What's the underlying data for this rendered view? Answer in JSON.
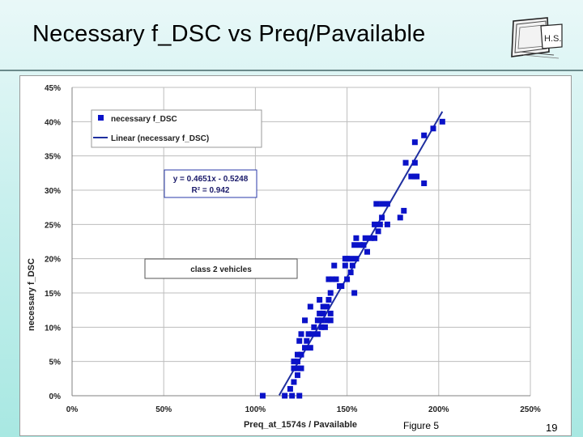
{
  "slide": {
    "title": "Necessary f_DSC vs Preq/Pavailable",
    "figure_label": "Figure 5",
    "page_number": "19",
    "logo_text": "H.S."
  },
  "colors": {
    "marker": "#0a12c8",
    "trendline": "#1f2f9f",
    "grid": "#bdbdbd",
    "axis": "#808080"
  },
  "chart_data": {
    "type": "scatter",
    "xlabel": "Preq_at_1574s / Pavailable",
    "ylabel": "necessary f_DSC",
    "xlim": [
      0,
      2.5
    ],
    "ylim": [
      0,
      0.45
    ],
    "x_ticks": [
      {
        "value": 0,
        "label": "0%"
      },
      {
        "value": 0.5,
        "label": "50%"
      },
      {
        "value": 1.0,
        "label": "100%"
      },
      {
        "value": 1.5,
        "label": "150%"
      },
      {
        "value": 2.0,
        "label": "200%"
      },
      {
        "value": 2.5,
        "label": "250%"
      }
    ],
    "y_ticks": [
      {
        "value": 0,
        "label": "0%"
      },
      {
        "value": 0.05,
        "label": "5%"
      },
      {
        "value": 0.1,
        "label": "10%"
      },
      {
        "value": 0.15,
        "label": "15%"
      },
      {
        "value": 0.2,
        "label": "20%"
      },
      {
        "value": 0.25,
        "label": "25%"
      },
      {
        "value": 0.3,
        "label": "30%"
      },
      {
        "value": 0.35,
        "label": "35%"
      },
      {
        "value": 0.4,
        "label": "40%"
      },
      {
        "value": 0.45,
        "label": "45%"
      }
    ],
    "grid": true,
    "legend": {
      "placement": "top-left",
      "entries": [
        {
          "label": "necessary f_DSC",
          "kind": "marker"
        },
        {
          "label": "Linear (necessary f_DSC)",
          "kind": "line"
        }
      ]
    },
    "equation_box": {
      "line1": "y = 0.4651x - 0.5248",
      "line2": "R² = 0.942"
    },
    "annotation": "class 2 vehicles",
    "trendline": {
      "slope": 0.4651,
      "intercept": -0.5248,
      "x_start": 1.13,
      "x_end": 2.02
    },
    "series": [
      {
        "name": "necessary f_DSC",
        "points": [
          [
            1.04,
            0.0
          ],
          [
            1.16,
            0.0
          ],
          [
            1.19,
            0.01
          ],
          [
            1.2,
            0.0
          ],
          [
            1.24,
            0.0
          ],
          [
            1.21,
            0.02
          ],
          [
            1.23,
            0.03
          ],
          [
            1.21,
            0.04
          ],
          [
            1.23,
            0.04
          ],
          [
            1.25,
            0.04
          ],
          [
            1.21,
            0.05
          ],
          [
            1.23,
            0.05
          ],
          [
            1.25,
            0.06
          ],
          [
            1.23,
            0.06
          ],
          [
            1.27,
            0.07
          ],
          [
            1.3,
            0.07
          ],
          [
            1.24,
            0.08
          ],
          [
            1.28,
            0.08
          ],
          [
            1.25,
            0.09
          ],
          [
            1.29,
            0.09
          ],
          [
            1.31,
            0.09
          ],
          [
            1.34,
            0.09
          ],
          [
            1.32,
            0.1
          ],
          [
            1.36,
            0.1
          ],
          [
            1.38,
            0.1
          ],
          [
            1.27,
            0.11
          ],
          [
            1.34,
            0.11
          ],
          [
            1.36,
            0.11
          ],
          [
            1.39,
            0.11
          ],
          [
            1.41,
            0.11
          ],
          [
            1.35,
            0.12
          ],
          [
            1.37,
            0.12
          ],
          [
            1.41,
            0.12
          ],
          [
            1.37,
            0.13
          ],
          [
            1.3,
            0.13
          ],
          [
            1.39,
            0.13
          ],
          [
            1.35,
            0.14
          ],
          [
            1.4,
            0.14
          ],
          [
            1.41,
            0.15
          ],
          [
            1.47,
            0.16
          ],
          [
            1.4,
            0.17
          ],
          [
            1.42,
            0.17
          ],
          [
            1.44,
            0.17
          ],
          [
            1.46,
            0.16
          ],
          [
            1.5,
            0.17
          ],
          [
            1.43,
            0.19
          ],
          [
            1.49,
            0.19
          ],
          [
            1.52,
            0.18
          ],
          [
            1.49,
            0.2
          ],
          [
            1.52,
            0.2
          ],
          [
            1.55,
            0.2
          ],
          [
            1.5,
            0.2
          ],
          [
            1.53,
            0.19
          ],
          [
            1.54,
            0.22
          ],
          [
            1.55,
            0.23
          ],
          [
            1.57,
            0.22
          ],
          [
            1.59,
            0.22
          ],
          [
            1.61,
            0.21
          ],
          [
            1.6,
            0.23
          ],
          [
            1.63,
            0.23
          ],
          [
            1.65,
            0.23
          ],
          [
            1.54,
            0.15
          ],
          [
            1.65,
            0.25
          ],
          [
            1.67,
            0.24
          ],
          [
            1.68,
            0.25
          ],
          [
            1.69,
            0.26
          ],
          [
            1.66,
            0.28
          ],
          [
            1.69,
            0.28
          ],
          [
            1.72,
            0.28
          ],
          [
            1.72,
            0.25
          ],
          [
            1.79,
            0.26
          ],
          [
            1.81,
            0.27
          ],
          [
            1.82,
            0.34
          ],
          [
            1.85,
            0.32
          ],
          [
            1.87,
            0.32
          ],
          [
            1.87,
            0.34
          ],
          [
            1.88,
            0.32
          ],
          [
            1.87,
            0.37
          ],
          [
            1.92,
            0.38
          ],
          [
            1.92,
            0.31
          ],
          [
            1.97,
            0.39
          ],
          [
            2.02,
            0.4
          ]
        ]
      }
    ]
  }
}
